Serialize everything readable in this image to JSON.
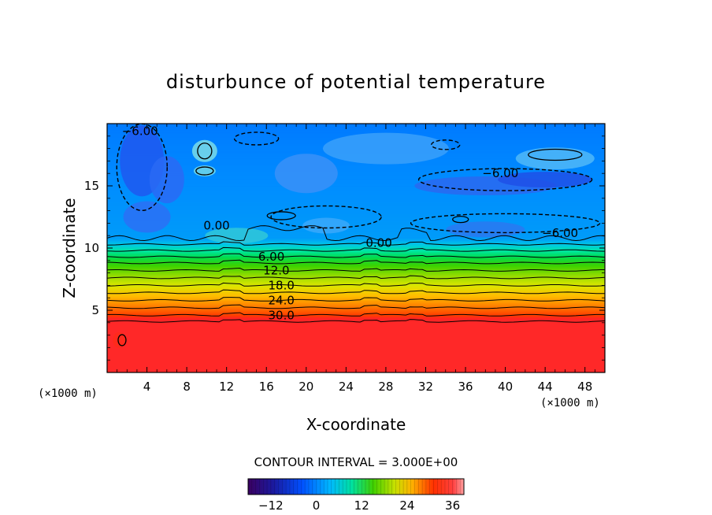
{
  "chart_data": {
    "type": "heatmap",
    "title": "disturbunce of potential temperature",
    "xlabel": "X-coordinate",
    "ylabel": "Z-coordinate",
    "x_unit": "(×1000 m)",
    "y_unit": "(×1000 m)",
    "xlim": [
      0,
      50
    ],
    "ylim": [
      0,
      20
    ],
    "x_ticks": [
      4,
      8,
      12,
      16,
      20,
      24,
      28,
      32,
      36,
      40,
      44,
      48
    ],
    "y_ticks": [
      5,
      10,
      15
    ],
    "contour_interval_text": "CONTOUR INTERVAL = 3.000E+00",
    "contour_interval": 3.0,
    "colorbar": {
      "range": [
        -18,
        39
      ],
      "ticks": [
        -12,
        0,
        12,
        24,
        36
      ],
      "tick_labels": [
        "−12",
        "0",
        "12",
        "24",
        "36"
      ]
    },
    "contour_labels": [
      {
        "text": "−6.00",
        "x": 3.3,
        "z": 19.4
      },
      {
        "text": "0.00",
        "x": 11.0,
        "z": 11.8
      },
      {
        "text": "−6.00",
        "x": 39.5,
        "z": 16.0
      },
      {
        "text": "−6.00",
        "x": 45.5,
        "z": 11.2
      },
      {
        "text": "0.00",
        "x": 27.3,
        "z": 10.4
      },
      {
        "text": "6.00",
        "x": 16.5,
        "z": 9.3
      },
      {
        "text": "12.0",
        "x": 17.0,
        "z": 8.2
      },
      {
        "text": "18.0",
        "x": 17.5,
        "z": 7.0
      },
      {
        "text": "24.0",
        "x": 17.5,
        "z": 5.8
      },
      {
        "text": "30.0",
        "x": 17.5,
        "z": 4.6
      }
    ],
    "profile_z": [
      0,
      4.1,
      4.6,
      5.2,
      5.8,
      6.4,
      7.0,
      7.6,
      8.2,
      8.8,
      9.3,
      9.8,
      10.3,
      10.8,
      20
    ],
    "profile_value": [
      39,
      39,
      30,
      27,
      24,
      21,
      18,
      15,
      12,
      9,
      6,
      3,
      0,
      -3,
      -5
    ]
  }
}
